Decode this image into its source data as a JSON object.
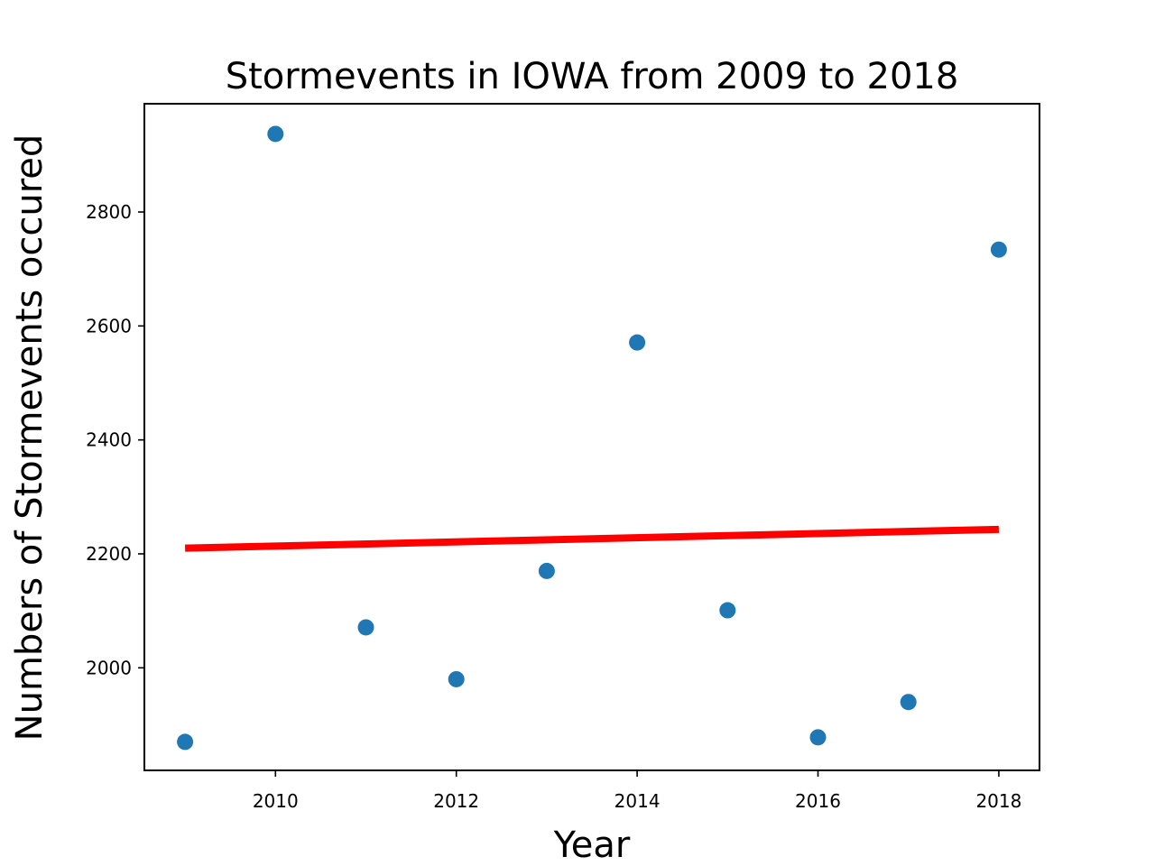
{
  "chart_data": {
    "type": "scatter",
    "title": "Stormevents in IOWA from 2009 to 2018",
    "xlabel": "Year",
    "ylabel": "Numbers of Stormevents occured",
    "xlim": [
      2008.55,
      2018.45
    ],
    "ylim": [
      1820,
      2990
    ],
    "xticks": [
      2010,
      2012,
      2014,
      2016,
      2018
    ],
    "yticks": [
      2000,
      2200,
      2400,
      2600,
      2800
    ],
    "grid": false,
    "legend": "none",
    "series": [
      {
        "type": "scatter",
        "color": "#1f77b4",
        "x": [
          2009,
          2010,
          2011,
          2012,
          2013,
          2014,
          2015,
          2016,
          2017,
          2018
        ],
        "y": [
          1870,
          2937,
          2071,
          1980,
          2170,
          2571,
          2101,
          1878,
          1940,
          2734
        ]
      },
      {
        "type": "line",
        "color": "#ff0000",
        "x": [
          2009,
          2018
        ],
        "y": [
          2210,
          2243
        ]
      }
    ]
  }
}
